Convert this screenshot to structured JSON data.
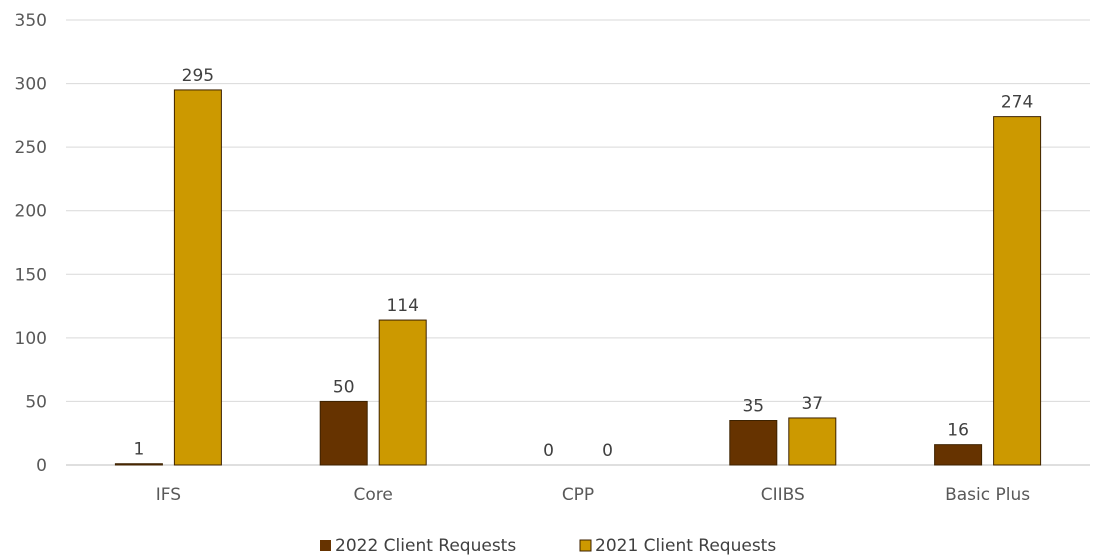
{
  "chart_data": {
    "type": "bar",
    "title": "",
    "xlabel": "",
    "ylabel": "",
    "categories": [
      "IFS",
      "Core",
      "CPP",
      "CIIBS",
      "Basic Plus"
    ],
    "series": [
      {
        "name": "2022 Client Requests",
        "values": [
          1,
          50,
          0,
          35,
          16
        ],
        "color": "#663300"
      },
      {
        "name": "2021 Client Requests",
        "values": [
          295,
          114,
          0,
          37,
          274
        ],
        "color": "#cc9900"
      }
    ],
    "ylim": [
      0,
      350
    ],
    "yticks": [
      0,
      50,
      100,
      150,
      200,
      250,
      300,
      350
    ],
    "grid": true,
    "legend": "bottom",
    "data_labels": true
  }
}
